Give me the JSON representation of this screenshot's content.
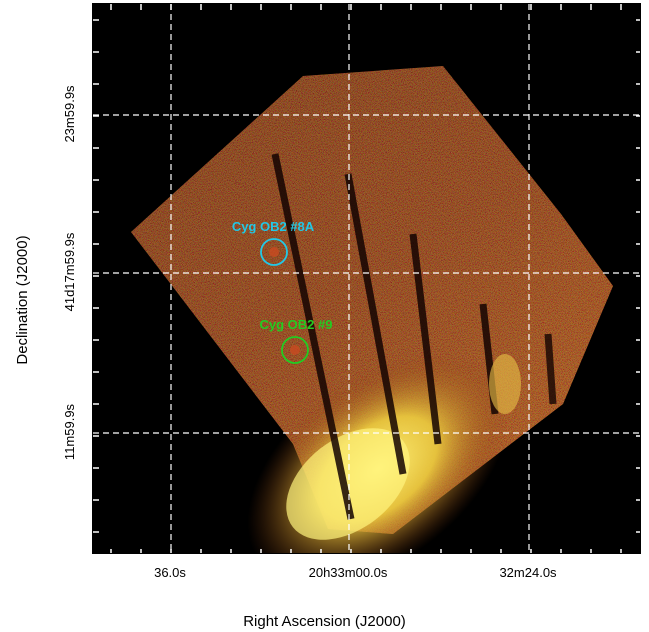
{
  "image": {
    "description_colors": {
      "background": "#000000",
      "grid": "#ffffff",
      "hot": "#f2e84a",
      "red": "#c23a1e",
      "green": "#3c8c2a"
    }
  },
  "axes": {
    "xlabel": "Right Ascension (J2000)",
    "ylabel": "Declination (J2000)",
    "x_ticks": [
      "36.0s",
      "20h33m00.0s",
      "32m24.0s"
    ],
    "y_ticks": [
      "23m59.9s",
      "41d17m59.9s",
      "11m59.9s"
    ]
  },
  "annotations": [
    {
      "label": "Cyg OB2 #8A",
      "color": "#22c8e6"
    },
    {
      "label": "Cyg OB2 #9",
      "color": "#22cc22"
    }
  ]
}
